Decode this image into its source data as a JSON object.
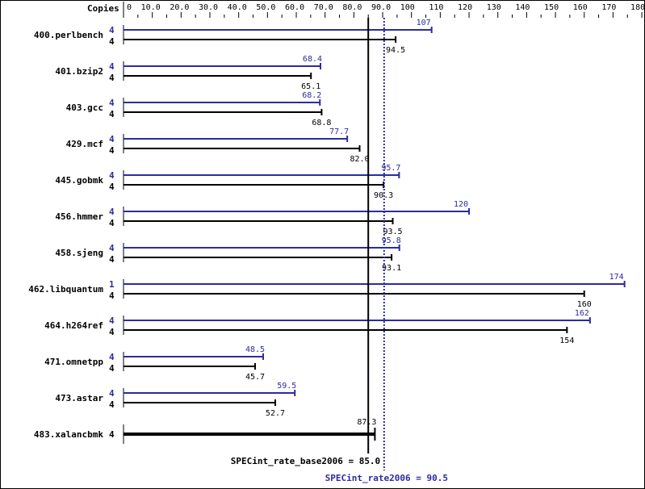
{
  "chart_data": {
    "type": "bar",
    "orientation": "horizontal",
    "title": "",
    "xlabel": "",
    "ylabel": "",
    "copies_header": "Copies",
    "xlim": [
      0,
      180
    ],
    "x_ticks": [
      "0",
      "10.0",
      "20.0",
      "30.0",
      "40.0",
      "50.0",
      "60.0",
      "70.0",
      "80.0",
      "90.0",
      "100",
      "110",
      "120",
      "130",
      "140",
      "150",
      "160",
      "170",
      "180"
    ],
    "categories": [
      "400.perlbench",
      "401.bzip2",
      "403.gcc",
      "429.mcf",
      "445.gobmk",
      "456.hmmer",
      "458.sjeng",
      "462.libquantum",
      "464.h264ref",
      "471.omnetpp",
      "473.astar",
      "483.xalancbmk"
    ],
    "series": [
      {
        "name": "SPECint_rate2006 (peak)",
        "color": "#2b2b9f",
        "copies": [
          "4",
          "4",
          "4",
          "4",
          "4",
          "4",
          "4",
          "1",
          "4",
          "4",
          "4",
          null
        ],
        "values": [
          107,
          68.4,
          68.2,
          77.7,
          95.7,
          120,
          95.8,
          174,
          162,
          48.5,
          59.5,
          null
        ],
        "labels": [
          "107",
          "68.4",
          "68.2",
          "77.7",
          "95.7",
          "120",
          "95.8",
          "174",
          "162",
          "48.5",
          "59.5",
          null
        ]
      },
      {
        "name": "SPECint_rate_base2006 (base)",
        "color": "#000000",
        "copies": [
          "4",
          "4",
          "4",
          "4",
          "4",
          "4",
          "4",
          "4",
          "4",
          "4",
          "4",
          "4"
        ],
        "values": [
          94.5,
          65.1,
          68.8,
          82.0,
          90.3,
          93.5,
          93.1,
          160,
          154,
          45.7,
          52.7,
          87.3
        ],
        "labels": [
          "94.5",
          "65.1",
          "68.8",
          "82.0",
          "90.3",
          "93.5",
          "93.1",
          "160",
          "154",
          "45.7",
          "52.7",
          "87.3"
        ]
      }
    ],
    "reference_lines": [
      {
        "name": "base",
        "label": "SPECint_rate_base2006 = 85.0",
        "value": 85.0,
        "color": "#000000",
        "style": "solid"
      },
      {
        "name": "peak",
        "label": "SPECint_rate2006 = 90.5",
        "value": 90.5,
        "color": "#2b2b9f",
        "style": "dotted"
      }
    ],
    "legend": "none",
    "grid": false
  }
}
